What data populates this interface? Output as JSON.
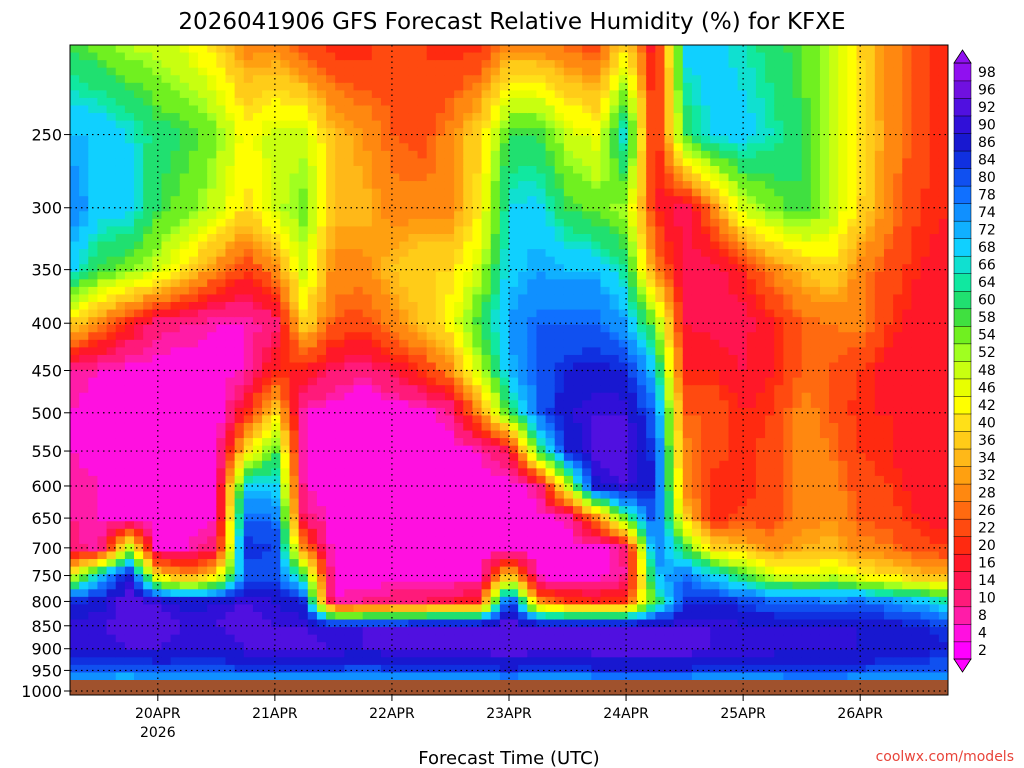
{
  "chart_data": {
    "type": "heatmap",
    "title": "2026041906 GFS Forecast Relative Humidity (%) for KFXE",
    "xlabel": "Forecast Time (UTC)",
    "ylabel": "",
    "x_ticks": [
      {
        "label": "20APR",
        "sublabel": "2026",
        "day": 20
      },
      {
        "label": "21APR",
        "day": 21
      },
      {
        "label": "22APR",
        "day": 22
      },
      {
        "label": "23APR",
        "day": 23
      },
      {
        "label": "24APR",
        "day": 24
      },
      {
        "label": "25APR",
        "day": 25
      },
      {
        "label": "26APR",
        "day": 26
      }
    ],
    "xlim_day": [
      19.25,
      26.75
    ],
    "y_pressure_ticks": [
      250,
      300,
      350,
      400,
      450,
      500,
      550,
      600,
      650,
      700,
      750,
      800,
      850,
      900,
      950,
      1000
    ],
    "ylim_hpa": [
      200,
      1010
    ],
    "y_scale": "log-pressure",
    "grid": "dotted",
    "colorbar_levels": [
      2,
      4,
      8,
      10,
      14,
      16,
      20,
      22,
      26,
      28,
      32,
      34,
      36,
      40,
      42,
      46,
      48,
      52,
      54,
      58,
      60,
      64,
      66,
      68,
      72,
      74,
      78,
      80,
      84,
      86,
      90,
      92,
      96,
      98
    ],
    "colorbar_colors": [
      "#ff00ff",
      "#ff10e0",
      "#ff1ca8",
      "#ff1a7a",
      "#ff1450",
      "#ff1828",
      "#ff2a10",
      "#ff4a10",
      "#ff6a10",
      "#ff8810",
      "#ffa010",
      "#ffb818",
      "#ffcc18",
      "#ffe018",
      "#ffff00",
      "#e8ff00",
      "#c8ff10",
      "#a0ff20",
      "#70f020",
      "#40e040",
      "#20e070",
      "#10e8a0",
      "#10e0d0",
      "#10d0ff",
      "#10b0ff",
      "#1090ff",
      "#1070ff",
      "#1050f0",
      "#1030e0",
      "#1818d0",
      "#3010d8",
      "#5010e0",
      "#7010e0",
      "#9010f0"
    ],
    "surface_color": "#a0522d",
    "profile_times_day": [
      19.25,
      19.5,
      19.75,
      20.0,
      20.25,
      20.5,
      20.75,
      21.0,
      21.25,
      21.5,
      21.75,
      22.0,
      22.25,
      22.5,
      22.75,
      23.0,
      23.25,
      23.5,
      23.75,
      24.0,
      24.25,
      24.5,
      24.75,
      25.0,
      25.25,
      25.5,
      25.75,
      26.0,
      26.25,
      26.5,
      26.75
    ],
    "profile_levels_hpa": [
      1000,
      950,
      900,
      850,
      800,
      750,
      700,
      650,
      600,
      550,
      500,
      450,
      400,
      350,
      300,
      250,
      200
    ],
    "profiles_rh": [
      [
        62,
        82,
        90,
        92,
        86,
        45,
        12,
        10,
        10,
        8,
        8,
        10,
        40,
        70,
        78,
        72,
        60
      ],
      [
        60,
        80,
        90,
        92,
        88,
        70,
        8,
        8,
        8,
        6,
        6,
        8,
        30,
        60,
        70,
        72,
        56
      ],
      [
        58,
        80,
        92,
        94,
        94,
        90,
        50,
        6,
        6,
        6,
        6,
        6,
        20,
        55,
        70,
        68,
        52
      ],
      [
        60,
        82,
        92,
        94,
        92,
        40,
        6,
        6,
        6,
        6,
        6,
        6,
        12,
        50,
        60,
        62,
        50
      ],
      [
        58,
        82,
        90,
        92,
        88,
        30,
        8,
        6,
        6,
        6,
        6,
        6,
        10,
        40,
        56,
        60,
        46
      ],
      [
        60,
        82,
        90,
        92,
        90,
        40,
        12,
        8,
        6,
        6,
        4,
        6,
        8,
        30,
        50,
        55,
        40
      ],
      [
        60,
        84,
        92,
        94,
        92,
        80,
        86,
        80,
        70,
        40,
        20,
        8,
        8,
        22,
        40,
        44,
        30
      ],
      [
        58,
        84,
        94,
        92,
        90,
        82,
        84,
        80,
        70,
        60,
        40,
        20,
        12,
        30,
        50,
        50,
        30
      ],
      [
        60,
        84,
        94,
        92,
        86,
        60,
        30,
        12,
        8,
        8,
        8,
        20,
        40,
        50,
        56,
        50,
        24
      ],
      [
        62,
        84,
        92,
        90,
        8,
        6,
        6,
        6,
        6,
        6,
        6,
        14,
        26,
        30,
        36,
        36,
        20
      ],
      [
        60,
        82,
        92,
        92,
        10,
        6,
        6,
        6,
        6,
        4,
        4,
        10,
        24,
        30,
        36,
        32,
        20
      ],
      [
        60,
        84,
        92,
        92,
        12,
        6,
        4,
        4,
        4,
        4,
        4,
        16,
        30,
        36,
        30,
        26,
        24
      ],
      [
        60,
        84,
        92,
        92,
        14,
        6,
        4,
        4,
        4,
        4,
        6,
        22,
        36,
        40,
        30,
        24,
        22
      ],
      [
        62,
        84,
        94,
        92,
        16,
        6,
        6,
        6,
        6,
        6,
        10,
        30,
        44,
        40,
        30,
        30,
        20
      ],
      [
        60,
        84,
        94,
        92,
        20,
        6,
        6,
        6,
        6,
        8,
        30,
        50,
        60,
        50,
        42,
        40,
        20
      ],
      [
        60,
        86,
        94,
        94,
        90,
        40,
        6,
        6,
        6,
        14,
        60,
        72,
        74,
        70,
        68,
        60,
        30
      ],
      [
        60,
        84,
        94,
        92,
        30,
        6,
        6,
        6,
        10,
        60,
        80,
        82,
        80,
        74,
        70,
        60,
        30
      ],
      [
        58,
        84,
        92,
        92,
        22,
        6,
        6,
        8,
        50,
        86,
        90,
        86,
        80,
        72,
        60,
        50,
        26
      ],
      [
        58,
        86,
        94,
        92,
        20,
        6,
        6,
        30,
        90,
        94,
        92,
        88,
        80,
        72,
        56,
        46,
        24
      ],
      [
        60,
        86,
        94,
        92,
        22,
        10,
        12,
        60,
        92,
        94,
        92,
        86,
        74,
        64,
        52,
        70,
        40
      ],
      [
        60,
        86,
        94,
        92,
        60,
        70,
        80,
        84,
        86,
        84,
        80,
        70,
        56,
        30,
        20,
        16,
        16
      ],
      [
        58,
        86,
        94,
        92,
        84,
        80,
        60,
        40,
        30,
        30,
        26,
        20,
        16,
        14,
        14,
        60,
        70
      ],
      [
        60,
        84,
        92,
        92,
        86,
        70,
        40,
        20,
        20,
        24,
        26,
        20,
        14,
        14,
        30,
        70,
        70
      ],
      [
        62,
        84,
        92,
        90,
        84,
        60,
        36,
        24,
        20,
        20,
        20,
        16,
        14,
        20,
        50,
        70,
        66
      ],
      [
        62,
        84,
        92,
        90,
        80,
        50,
        30,
        24,
        24,
        24,
        22,
        20,
        20,
        30,
        56,
        66,
        62
      ],
      [
        64,
        84,
        90,
        90,
        80,
        46,
        34,
        30,
        30,
        30,
        30,
        26,
        26,
        36,
        60,
        60,
        58
      ],
      [
        64,
        84,
        90,
        90,
        78,
        50,
        36,
        32,
        30,
        28,
        26,
        26,
        28,
        40,
        52,
        52,
        52
      ],
      [
        62,
        84,
        90,
        90,
        80,
        44,
        30,
        26,
        24,
        22,
        20,
        22,
        30,
        30,
        40,
        42,
        40
      ],
      [
        62,
        82,
        90,
        88,
        76,
        40,
        28,
        24,
        22,
        20,
        20,
        18,
        22,
        24,
        30,
        30,
        30
      ],
      [
        64,
        82,
        88,
        86,
        72,
        36,
        24,
        20,
        18,
        18,
        18,
        16,
        18,
        20,
        22,
        24,
        24
      ],
      [
        64,
        80,
        86,
        84,
        66,
        34,
        22,
        18,
        16,
        16,
        16,
        16,
        16,
        18,
        20,
        20,
        20
      ]
    ]
  },
  "footer": {
    "credit": "coolwx.com/models"
  }
}
